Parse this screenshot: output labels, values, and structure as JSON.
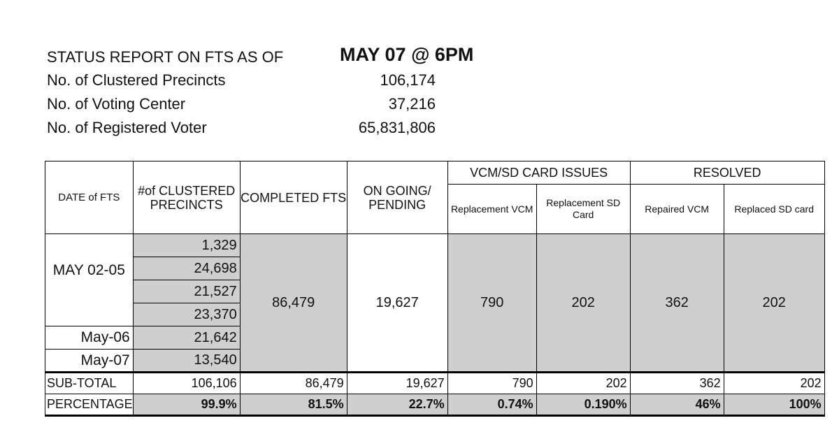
{
  "header": {
    "title": "STATUS REPORT ON FTS AS OF",
    "report_date": "MAY 07 @ 6PM",
    "rows": [
      {
        "label": "No. of Clustered Precincts",
        "value": "106,174"
      },
      {
        "label": "No. of Voting Center",
        "value": "37,216"
      },
      {
        "label": "No. of Registered Voter",
        "value": "65,831,806"
      }
    ]
  },
  "table": {
    "headers": {
      "date": "DATE of FTS",
      "clustered": "#of CLUSTERED PRECINCTS",
      "completed": "COMPLETED FTS",
      "ongoing": "ON GOING/ PENDING",
      "vcm_group": "VCM/SD CARD ISSUES",
      "replacement_vcm": "Replacement VCM",
      "replacement_sd": "Replacement SD Card",
      "resolved_group": "RESOLVED",
      "repaired_vcm": "Repaired VCM",
      "replaced_sd": "Replaced SD card"
    },
    "date_group": "MAY 02-05",
    "date_may06": "May-06",
    "date_may07": "May-07",
    "precincts": [
      "1,329",
      "24,698",
      "21,527",
      "23,370",
      "21,642",
      "13,540"
    ],
    "completed": "86,479",
    "ongoing": "19,627",
    "replacement_vcm": "790",
    "replacement_sd": "202",
    "repaired_vcm": "362",
    "replaced_sd": "202",
    "subtotal": {
      "label": "SUB-TOTAL",
      "clustered": "106,106",
      "completed": "86,479",
      "ongoing": "19,627",
      "replacement_vcm": "790",
      "replacement_sd": "202",
      "repaired_vcm": "362",
      "replaced_sd": "202"
    },
    "percentage": {
      "label": "PERCENTAGE",
      "clustered": "99.9%",
      "completed": "81.5%",
      "ongoing": "22.7%",
      "replacement_vcm": "0.74%",
      "replacement_sd": "0.190%",
      "repaired_vcm": "46%",
      "replaced_sd": "100%"
    }
  }
}
